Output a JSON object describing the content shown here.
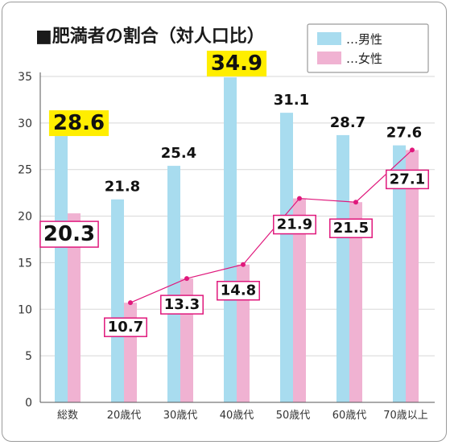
{
  "chart_data": {
    "type": "bar",
    "title": "■肥満者の割合（対人口比）",
    "categories": [
      "総数",
      "20歳代",
      "30歳代",
      "40歳代",
      "50歳代",
      "60歳代",
      "70歳以上"
    ],
    "series": [
      {
        "name": "…男性",
        "values": [
          28.6,
          21.8,
          25.4,
          34.9,
          31.1,
          28.7,
          27.6
        ],
        "color": "#a8dcef"
      },
      {
        "name": "…女性",
        "values": [
          20.3,
          10.7,
          13.3,
          14.8,
          21.9,
          21.5,
          27.1
        ],
        "color": "#f0b2d2"
      }
    ],
    "value_labels": {
      "male": [
        "28.6",
        "21.8",
        "25.4",
        "34.9",
        "31.1",
        "28.7",
        "27.6"
      ],
      "female": [
        "20.3",
        "10.7",
        "13.3",
        "14.8",
        "21.9",
        "21.5",
        "27.1"
      ]
    },
    "yticks": [
      "0",
      "5",
      "10",
      "15",
      "20",
      "25",
      "30",
      "35"
    ],
    "ylim": [
      0,
      35
    ],
    "female_trend_line": {
      "from_category_index": 1,
      "color": "#e0187c"
    },
    "highlight_color": "#ffee00",
    "female_label_border_color": "#e0187c",
    "legend_position": "top-right",
    "grid": true
  }
}
